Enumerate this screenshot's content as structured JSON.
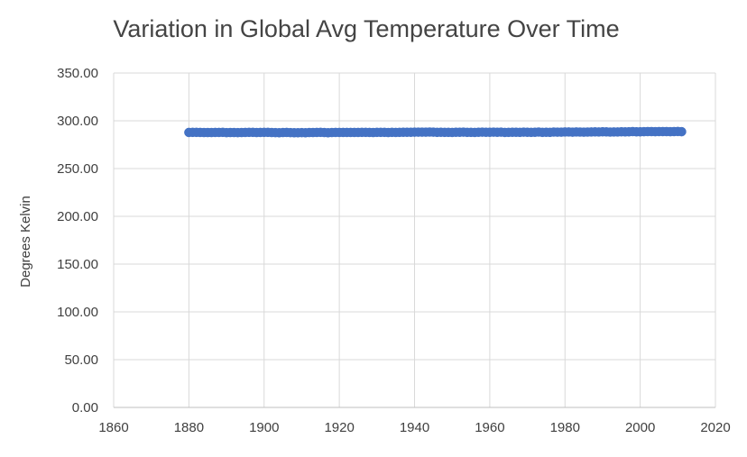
{
  "chart_data": {
    "type": "scatter",
    "title": "Variation in Global Avg Temperature Over Time",
    "xlabel": "",
    "ylabel": "Degrees Kelvin",
    "xlim": [
      1860,
      2020
    ],
    "ylim": [
      0,
      350
    ],
    "x_ticks": [
      "1860",
      "1880",
      "1900",
      "1920",
      "1940",
      "1960",
      "1980",
      "2000",
      "2020"
    ],
    "y_ticks": [
      "0.00",
      "50.00",
      "100.00",
      "150.00",
      "200.00",
      "250.00",
      "300.00",
      "350.00"
    ],
    "grid": true,
    "marker_color": "#4472C4",
    "series": [
      {
        "x": [
          1880,
          1881,
          1882,
          1883,
          1884,
          1885,
          1886,
          1887,
          1888,
          1889,
          1890,
          1891,
          1892,
          1893,
          1894,
          1895,
          1896,
          1897,
          1898,
          1899,
          1900,
          1901,
          1902,
          1903,
          1904,
          1905,
          1906,
          1907,
          1908,
          1909,
          1910,
          1911,
          1912,
          1913,
          1914,
          1915,
          1916,
          1917,
          1918,
          1919,
          1920,
          1921,
          1922,
          1923,
          1924,
          1925,
          1926,
          1927,
          1928,
          1929,
          1930,
          1931,
          1932,
          1933,
          1934,
          1935,
          1936,
          1937,
          1938,
          1939,
          1940,
          1941,
          1942,
          1943,
          1944,
          1945,
          1946,
          1947,
          1948,
          1949,
          1950,
          1951,
          1952,
          1953,
          1954,
          1955,
          1956,
          1957,
          1958,
          1959,
          1960,
          1961,
          1962,
          1963,
          1964,
          1965,
          1966,
          1967,
          1968,
          1969,
          1970,
          1971,
          1972,
          1973,
          1974,
          1975,
          1976,
          1977,
          1978,
          1979,
          1980,
          1981,
          1982,
          1983,
          1984,
          1985,
          1986,
          1987,
          1988,
          1989,
          1990,
          1991,
          1992,
          1993,
          1994,
          1995,
          1996,
          1997,
          1998,
          1999,
          2000,
          2001,
          2002,
          2003,
          2004,
          2005,
          2006,
          2007,
          2008,
          2009,
          2010,
          2011
        ],
        "y": [
          287.8,
          287.9,
          287.9,
          287.8,
          287.7,
          287.7,
          287.7,
          287.8,
          287.8,
          287.9,
          287.6,
          287.7,
          287.7,
          287.6,
          287.7,
          287.8,
          287.9,
          287.9,
          287.7,
          287.8,
          287.9,
          287.9,
          287.7,
          287.6,
          287.5,
          287.7,
          287.8,
          287.6,
          287.5,
          287.5,
          287.6,
          287.5,
          287.7,
          287.7,
          287.8,
          287.9,
          287.7,
          287.5,
          287.7,
          287.8,
          287.8,
          287.8,
          287.8,
          287.8,
          287.8,
          287.8,
          287.9,
          287.9,
          287.8,
          287.7,
          287.9,
          287.9,
          287.9,
          287.7,
          287.9,
          287.8,
          287.9,
          288.0,
          288.0,
          288.0,
          288.1,
          288.1,
          288.1,
          288.1,
          288.2,
          288.1,
          287.9,
          288.0,
          287.9,
          287.9,
          287.8,
          288.0,
          288.0,
          288.1,
          287.9,
          287.9,
          287.8,
          288.0,
          288.1,
          288.0,
          288.0,
          288.1,
          288.0,
          288.1,
          287.8,
          287.9,
          288.0,
          288.0,
          287.9,
          288.1,
          288.0,
          287.9,
          288.0,
          288.2,
          287.9,
          288.0,
          287.9,
          288.2,
          288.1,
          288.1,
          288.3,
          288.3,
          288.1,
          288.3,
          288.2,
          288.1,
          288.2,
          288.3,
          288.4,
          288.3,
          288.5,
          288.4,
          288.2,
          288.3,
          288.3,
          288.5,
          288.4,
          288.5,
          288.7,
          288.5,
          288.5,
          288.6,
          288.7,
          288.7,
          288.6,
          288.7,
          288.7,
          288.7,
          288.6,
          288.7,
          288.8,
          288.6
        ]
      }
    ]
  }
}
